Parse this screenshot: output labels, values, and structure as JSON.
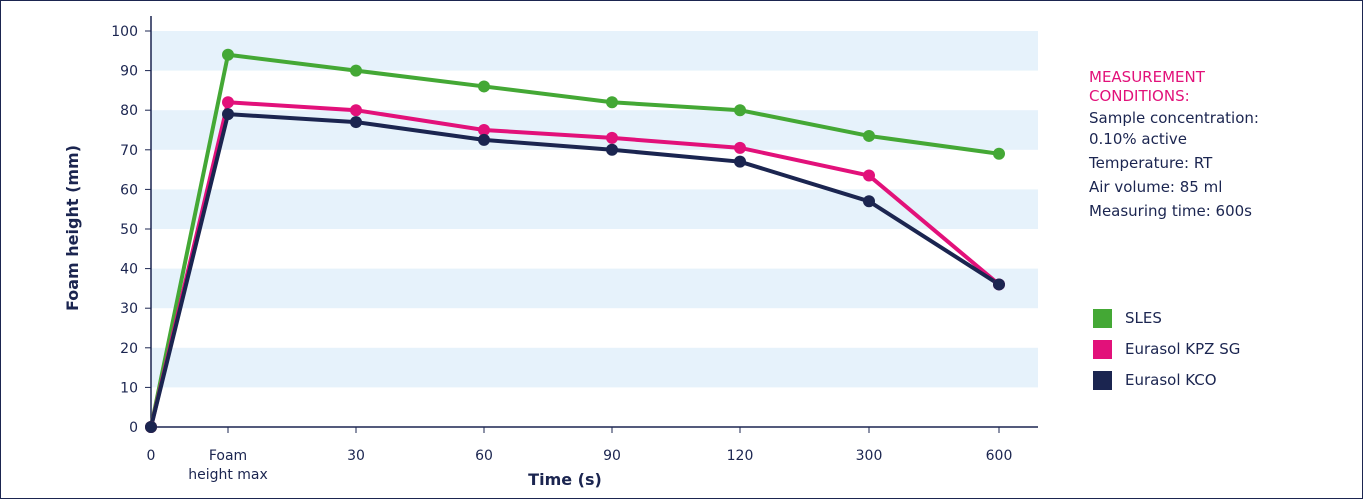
{
  "chart_data": {
    "type": "line",
    "categories": [
      "0",
      "Foam\nheight max",
      "30",
      "60",
      "90",
      "120",
      "300",
      "600"
    ],
    "xlabel": "Time (s)",
    "ylabel": "Foam height (mm)",
    "ylim": [
      0,
      100
    ],
    "yticks": [
      0,
      10,
      20,
      30,
      40,
      50,
      60,
      70,
      80,
      90,
      100
    ],
    "grid": "alternating horizontal bands",
    "series": [
      {
        "name": "SLES",
        "color": "#44a835",
        "values": [
          0,
          94,
          90,
          86,
          82,
          80,
          73.5,
          69
        ]
      },
      {
        "name": "Eurasol KPZ SG",
        "color": "#e2117a",
        "values": [
          0,
          82,
          80,
          75,
          73,
          70.5,
          63.5,
          36
        ]
      },
      {
        "name": "Eurasol KCO",
        "color": "#1b2550",
        "values": [
          0,
          79,
          77,
          72.5,
          70,
          67,
          57,
          36
        ]
      }
    ]
  },
  "conditions": {
    "title_line1": "MEASUREMENT",
    "title_line2": "CONDITIONS:",
    "line1": "Sample concentration:",
    "line2": "0.10% active",
    "line3": "Temperature: RT",
    "line4": "Air volume: 85 ml",
    "line5": "Measuring time: 600s"
  },
  "colors": {
    "band": "#e6f2fb",
    "axis": "#1b2550"
  }
}
